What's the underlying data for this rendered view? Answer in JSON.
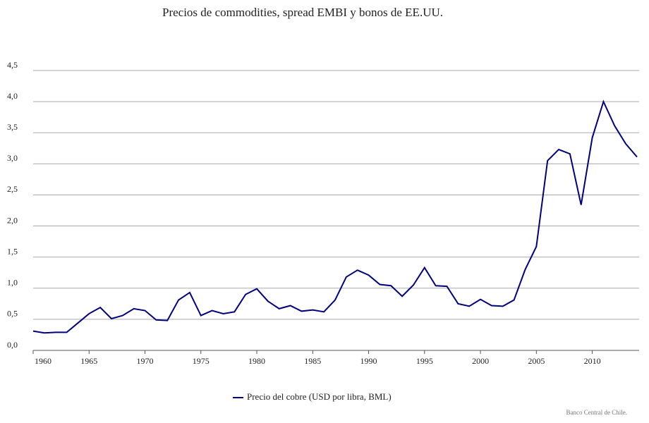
{
  "chart_data": {
    "type": "line",
    "title": "Precios de commodities, spread EMBI y bonos de EE.UU.",
    "x": [
      1960,
      1961,
      1962,
      1963,
      1964,
      1965,
      1966,
      1967,
      1968,
      1969,
      1970,
      1971,
      1972,
      1973,
      1974,
      1975,
      1976,
      1977,
      1978,
      1979,
      1980,
      1981,
      1982,
      1983,
      1984,
      1985,
      1986,
      1987,
      1988,
      1989,
      1990,
      1991,
      1992,
      1993,
      1994,
      1995,
      1996,
      1997,
      1998,
      1999,
      2000,
      2001,
      2002,
      2003,
      2004,
      2005,
      2006,
      2007,
      2008,
      2009,
      2010,
      2011,
      2012,
      2013,
      2014
    ],
    "series": [
      {
        "name": "Precio del cobre (USD por libra, BML)",
        "color": "#000080",
        "values": [
          0.31,
          0.28,
          0.29,
          0.29,
          0.44,
          0.59,
          0.69,
          0.51,
          0.56,
          0.67,
          0.64,
          0.49,
          0.48,
          0.81,
          0.93,
          0.56,
          0.64,
          0.59,
          0.62,
          0.9,
          0.99,
          0.79,
          0.67,
          0.72,
          0.63,
          0.65,
          0.62,
          0.81,
          1.18,
          1.29,
          1.21,
          1.06,
          1.04,
          0.87,
          1.05,
          1.33,
          1.04,
          1.03,
          0.75,
          0.71,
          0.82,
          0.72,
          0.71,
          0.81,
          1.3,
          1.67,
          3.05,
          3.23,
          3.16,
          2.34,
          3.42,
          4.0,
          3.61,
          3.32,
          3.11
        ]
      }
    ],
    "xlim": [
      1960,
      2014
    ],
    "xticks": [
      1960,
      1965,
      1970,
      1975,
      1980,
      1985,
      1990,
      1995,
      2000,
      2005,
      2010
    ],
    "ylim": [
      0,
      4.5
    ],
    "yticks": [
      {
        "value": 0,
        "label": "0,0"
      },
      {
        "value": 0.5,
        "label": "0,5"
      },
      {
        "value": 1,
        "label": "1,0"
      },
      {
        "value": 1.5,
        "label": "1,5"
      },
      {
        "value": 2,
        "label": "2,0"
      },
      {
        "value": 2.5,
        "label": "2,5"
      },
      {
        "value": 3,
        "label": "3,0"
      },
      {
        "value": 3.5,
        "label": "3,5"
      },
      {
        "value": 4,
        "label": "4,0"
      },
      {
        "value": 4.5,
        "label": "4,5"
      }
    ],
    "grid": true,
    "legend": "bottom",
    "source": "Banco Central de Chile."
  }
}
